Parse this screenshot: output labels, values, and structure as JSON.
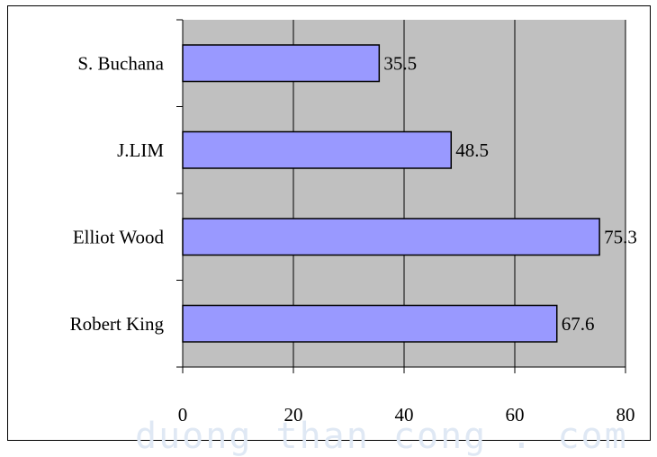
{
  "chart_data": {
    "type": "bar",
    "orientation": "horizontal",
    "categories": [
      "S. Buchana",
      "J.LIM",
      "Elliot Wood",
      "Robert King"
    ],
    "values": [
      35.5,
      48.5,
      75.3,
      67.6
    ],
    "data_labels": [
      "35.5",
      "48.5",
      "75.3",
      "67.6"
    ],
    "xlim": [
      0,
      80
    ],
    "x_ticks": [
      0,
      20,
      40,
      60,
      80
    ],
    "grid": true,
    "legend": "none",
    "colors": {
      "bar_fill": "#9999ff",
      "bar_stroke": "#000000",
      "plot_bg": "#c0c0c0",
      "grid": "#000000"
    }
  },
  "watermark": "duong than cong . com"
}
